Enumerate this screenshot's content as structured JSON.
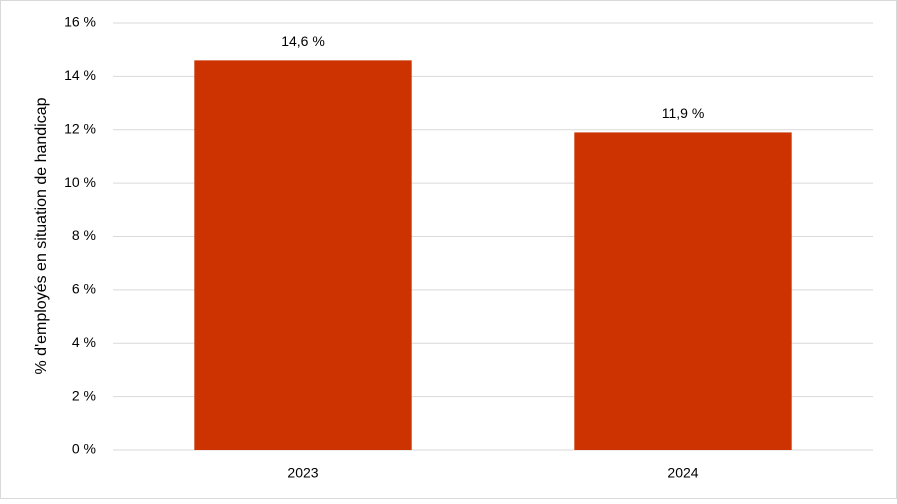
{
  "chart_data": {
    "type": "bar",
    "y_axis_label": "% d'employés en situation de handicap",
    "categories": [
      "2023",
      "2024"
    ],
    "values": [
      14.6,
      11.9
    ],
    "value_labels": [
      "14,6 %",
      "11,9 %"
    ],
    "color": "#cc3300",
    "ylim": [
      0,
      16
    ],
    "yticks": [
      {
        "value": 0,
        "label": "0 %"
      },
      {
        "value": 2,
        "label": "2 %"
      },
      {
        "value": 4,
        "label": "4 %"
      },
      {
        "value": 6,
        "label": "6 %"
      },
      {
        "value": 8,
        "label": "8 %"
      },
      {
        "value": 10,
        "label": "10 %"
      },
      {
        "value": 12,
        "label": "12 %"
      },
      {
        "value": 14,
        "label": "14 %"
      },
      {
        "value": 16,
        "label": "16 %"
      }
    ],
    "grid": true
  }
}
